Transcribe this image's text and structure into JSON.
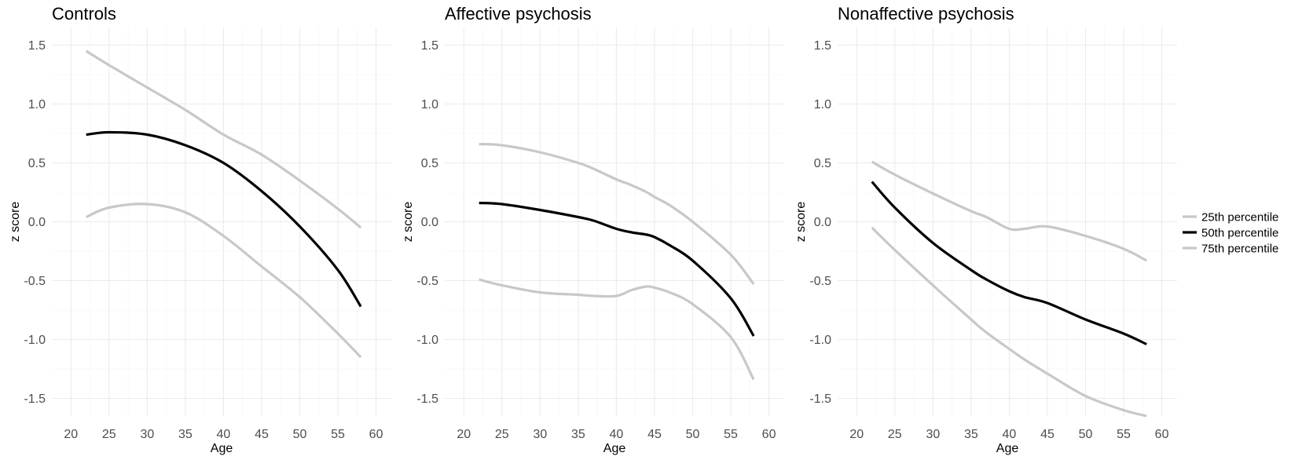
{
  "chart_data": [
    {
      "type": "line",
      "title": "Controls",
      "xlabel": "Age",
      "ylabel": "z score",
      "xlim": [
        17.5,
        62
      ],
      "ylim": [
        -1.65,
        1.65
      ],
      "x_ticks": [
        "20",
        "25",
        "30",
        "35",
        "40",
        "45",
        "50",
        "55",
        "60"
      ],
      "y_ticks": [
        "1.5",
        "1.0",
        "0.5",
        "0.0",
        "-0.5",
        "-1.0",
        "-1.5"
      ],
      "x_tick_values": [
        20,
        25,
        30,
        35,
        40,
        45,
        50,
        55,
        60
      ],
      "y_tick_values": [
        1.5,
        1.0,
        0.5,
        0.0,
        -0.5,
        -1.0,
        -1.5
      ],
      "grid": true,
      "x": [
        22,
        25,
        30,
        35,
        40,
        45,
        50,
        55,
        58
      ],
      "series": [
        {
          "name": "25th percentile",
          "color": "#c8c8c8",
          "values": [
            0.04,
            0.12,
            0.15,
            0.08,
            -0.12,
            -0.38,
            -0.64,
            -0.95,
            -1.15
          ]
        },
        {
          "name": "50th percentile",
          "color": "#000000",
          "values": [
            0.74,
            0.76,
            0.74,
            0.65,
            0.5,
            0.26,
            -0.04,
            -0.41,
            -0.72
          ]
        },
        {
          "name": "75th percentile",
          "color": "#c8c8c8",
          "values": [
            1.45,
            1.33,
            1.14,
            0.95,
            0.74,
            0.57,
            0.35,
            0.11,
            -0.05
          ]
        }
      ]
    },
    {
      "type": "line",
      "title": "Affective psychosis",
      "xlabel": "Age",
      "ylabel": "z score",
      "xlim": [
        17.5,
        62
      ],
      "ylim": [
        -1.65,
        1.65
      ],
      "x_ticks": [
        "20",
        "25",
        "30",
        "35",
        "40",
        "45",
        "50",
        "55",
        "60"
      ],
      "y_ticks": [
        "1.5",
        "1.0",
        "0.5",
        "0.0",
        "-0.5",
        "-1.0",
        "-1.5"
      ],
      "x_tick_values": [
        20,
        25,
        30,
        35,
        40,
        45,
        50,
        55,
        60
      ],
      "y_tick_values": [
        1.5,
        1.0,
        0.5,
        0.0,
        -0.5,
        -1.0,
        -1.5
      ],
      "grid": true,
      "x": [
        22,
        25,
        30,
        35,
        37,
        40,
        42,
        44,
        45,
        47,
        50,
        55,
        58
      ],
      "series": [
        {
          "name": "25th percentile",
          "color": "#c8c8c8",
          "values": [
            -0.49,
            -0.54,
            -0.6,
            -0.62,
            -0.63,
            -0.63,
            -0.58,
            -0.55,
            -0.56,
            -0.6,
            -0.7,
            -0.98,
            -1.34
          ]
        },
        {
          "name": "50th percentile",
          "color": "#000000",
          "values": [
            0.16,
            0.15,
            0.1,
            0.04,
            0.01,
            -0.06,
            -0.09,
            -0.11,
            -0.13,
            -0.2,
            -0.33,
            -0.65,
            -0.97
          ]
        },
        {
          "name": "75th percentile",
          "color": "#c8c8c8",
          "values": [
            0.66,
            0.65,
            0.59,
            0.5,
            0.45,
            0.36,
            0.31,
            0.25,
            0.21,
            0.14,
            0.0,
            -0.28,
            -0.53
          ]
        }
      ]
    },
    {
      "type": "line",
      "title": "Nonaffective psychosis",
      "xlabel": "Age",
      "ylabel": "z score",
      "xlim": [
        17.5,
        62
      ],
      "ylim": [
        -1.65,
        1.65
      ],
      "x_ticks": [
        "20",
        "25",
        "30",
        "35",
        "40",
        "45",
        "50",
        "55",
        "60"
      ],
      "y_ticks": [
        "1.5",
        "1.0",
        "0.5",
        "0.0",
        "-0.5",
        "-1.0",
        "-1.5"
      ],
      "x_tick_values": [
        20,
        25,
        30,
        35,
        40,
        45,
        50,
        55,
        60
      ],
      "y_tick_values": [
        1.5,
        1.0,
        0.5,
        0.0,
        -0.5,
        -1.0,
        -1.5
      ],
      "grid": true,
      "x": [
        22,
        25,
        30,
        35,
        37,
        40,
        42,
        45,
        50,
        55,
        58
      ],
      "series": [
        {
          "name": "25th percentile",
          "color": "#c8c8c8",
          "values": [
            -0.05,
            -0.24,
            -0.54,
            -0.83,
            -0.94,
            -1.08,
            -1.17,
            -1.29,
            -1.48,
            -1.6,
            -1.65
          ]
        },
        {
          "name": "50th percentile",
          "color": "#000000",
          "values": [
            0.34,
            0.12,
            -0.18,
            -0.41,
            -0.49,
            -0.59,
            -0.64,
            -0.69,
            -0.83,
            -0.95,
            -1.04
          ]
        },
        {
          "name": "75th percentile",
          "color": "#c8c8c8",
          "values": [
            0.51,
            0.4,
            0.24,
            0.09,
            0.04,
            -0.06,
            -0.06,
            -0.04,
            -0.12,
            -0.23,
            -0.33
          ]
        }
      ]
    }
  ],
  "legend": {
    "placement": "right",
    "entries": [
      {
        "label": "25th percentile",
        "color": "#c8c8c8"
      },
      {
        "label": "50th percentile",
        "color": "#000000"
      },
      {
        "label": "75th percentile",
        "color": "#c8c8c8"
      }
    ]
  }
}
